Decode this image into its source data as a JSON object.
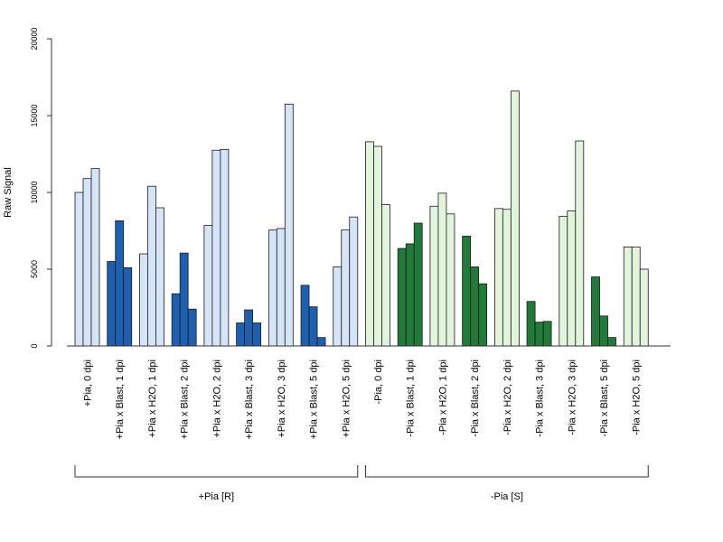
{
  "chart_data": {
    "type": "bar",
    "title": "",
    "xlabel": "",
    "ylabel": "Raw Signal",
    "ylim": [
      0,
      20000
    ],
    "yticks": [
      0,
      5000,
      10000,
      15000,
      20000
    ],
    "grid": false,
    "legend": "none",
    "categories": [
      "+Pia, 0 dpi",
      "+Pia x Blast, 1 dpi",
      "+Pia x H2O, 1 dpi",
      "+Pia x Blast, 2 dpi",
      "+Pia x H2O, 2 dpi",
      "+Pia x Blast, 3 dpi",
      "+Pia x H2O, 3 dpi",
      "+Pia x Blast, 5 dpi",
      "+Pia x H2O, 5 dpi",
      "-Pia, 0 dpi",
      "-Pia x Blast, 1 dpi",
      "-Pia x H2O, 1 dpi",
      "-Pia x Blast, 2 dpi",
      "-Pia x H2O, 2 dpi",
      "-Pia x Blast, 3 dpi",
      "-Pia x H2O, 3 dpi",
      "-Pia x Blast, 5 dpi",
      "-Pia x H2O, 5 dpi"
    ],
    "values": [
      [
        10000,
        10900,
        11550
      ],
      [
        5500,
        8150,
        5100
      ],
      [
        6000,
        10400,
        9000
      ],
      [
        3400,
        6050,
        2400
      ],
      [
        7850,
        12750,
        12800
      ],
      [
        1500,
        2350,
        1500
      ],
      [
        7550,
        7650,
        15750
      ],
      [
        3950,
        2550,
        550
      ],
      [
        5150,
        7550,
        8400
      ],
      [
        13300,
        13000,
        9200
      ],
      [
        6350,
        6650,
        8000
      ],
      [
        9100,
        9950,
        8600
      ],
      [
        7150,
        5150,
        4050
      ],
      [
        8950,
        8900,
        16600
      ],
      [
        2900,
        1550,
        1600
      ],
      [
        8450,
        8800,
        13350
      ],
      [
        4500,
        1950,
        550
      ],
      [
        6450,
        6450,
        5000
      ]
    ],
    "bar_colors": [
      "#d6e4f7",
      "#1f5fb0",
      "#d6e4f7",
      "#1f5fb0",
      "#d6e4f7",
      "#1f5fb0",
      "#d6e4f7",
      "#1f5fb0",
      "#d6e4f7",
      "#e2f5dc",
      "#217a3a",
      "#e2f5dc",
      "#217a3a",
      "#e2f5dc",
      "#217a3a",
      "#e2f5dc",
      "#217a3a",
      "#e2f5dc"
    ],
    "groups": [
      {
        "label": "+Pia [R]",
        "from": 0,
        "to": 8
      },
      {
        "label": "-Pia [S]",
        "from": 9,
        "to": 17
      }
    ]
  }
}
